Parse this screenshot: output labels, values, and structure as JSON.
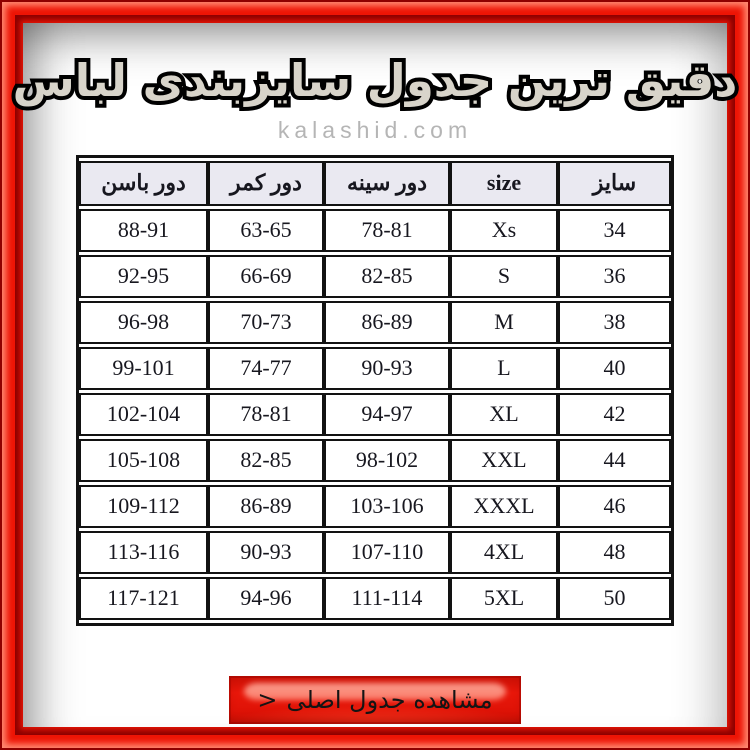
{
  "title": "دقیق ترین جدول سایزبندی لباس",
  "watermark": "kalashid.com",
  "table": {
    "headers": [
      "سایز",
      "size",
      "دور سینه",
      "دور کمر",
      "دور باسن"
    ],
    "rows": [
      [
        "34",
        "Xs",
        "78-81",
        "63-65",
        "88-91"
      ],
      [
        "36",
        "S",
        "82-85",
        "66-69",
        "92-95"
      ],
      [
        "38",
        "M",
        "86-89",
        "70-73",
        "96-98"
      ],
      [
        "40",
        "L",
        "90-93",
        "74-77",
        "99-101"
      ],
      [
        "42",
        "XL",
        "94-97",
        "78-81",
        "102-104"
      ],
      [
        "44",
        "XXL",
        "98-102",
        "82-85",
        "105-108"
      ],
      [
        "46",
        "XXXL",
        "103-106",
        "86-89",
        "109-112"
      ],
      [
        "48",
        "4XL",
        "107-110",
        "90-93",
        "113-116"
      ],
      [
        "50",
        "5XL",
        "111-114",
        "94-96",
        "117-121"
      ]
    ]
  },
  "button": {
    "label": "مشاهده جدول اصلی",
    "arrow": ">"
  },
  "colors": {
    "frame_red": "#e81505",
    "frame_highlight": "#ff8a72",
    "frame_dark_edge": "#8c0000",
    "button_red": "#e8170a",
    "button_highlight": "#ff9583",
    "header_bg": "#eae9f1",
    "table_text": "#17171f",
    "title_fill": "#d8d4ca",
    "watermark_gray": "#b5b5b5"
  }
}
